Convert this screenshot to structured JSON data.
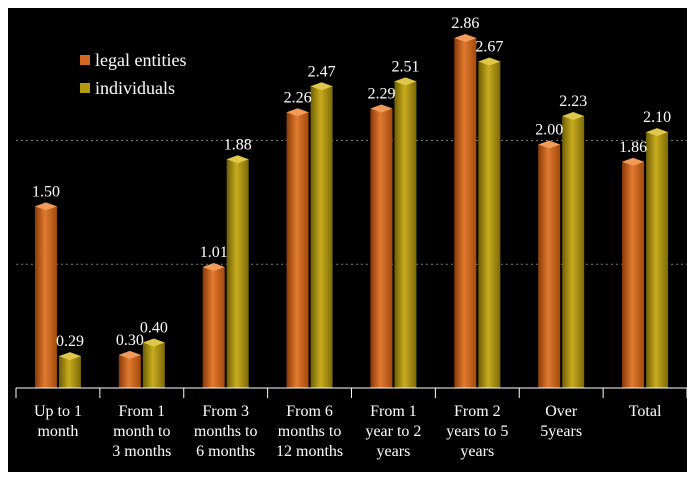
{
  "chart_data": {
    "type": "bar",
    "categories": [
      [
        "Up to 1",
        "month"
      ],
      [
        "From 1",
        "month to",
        "3 months"
      ],
      [
        "From 3",
        "months to",
        "6 months"
      ],
      [
        "From 6",
        "months to",
        "12 months"
      ],
      [
        "From 1",
        "year to 2",
        "years"
      ],
      [
        "From 2",
        "years to 5",
        "years"
      ],
      [
        "Over",
        "5years"
      ],
      [
        "Total"
      ]
    ],
    "series": [
      {
        "name": "legal entities",
        "color": "#D2691E",
        "values": [
          1.5,
          0.3,
          1.01,
          2.26,
          2.29,
          2.86,
          2.0,
          1.86
        ],
        "labels": [
          "1.50",
          "0.30",
          "1.01",
          "2.26",
          "2.29",
          "2.86",
          "2.00",
          "1.86"
        ]
      },
      {
        "name": "individuals",
        "color": "#B59A10",
        "values": [
          0.29,
          0.4,
          1.88,
          2.47,
          2.51,
          2.67,
          2.23,
          2.1
        ],
        "labels": [
          "0.29",
          "0.40",
          "1.88",
          "2.47",
          "2.51",
          "2.67",
          "2.23",
          "2.10"
        ]
      }
    ],
    "ylim": [
      0,
      3
    ],
    "grid": true,
    "legend_position": "top-left"
  }
}
